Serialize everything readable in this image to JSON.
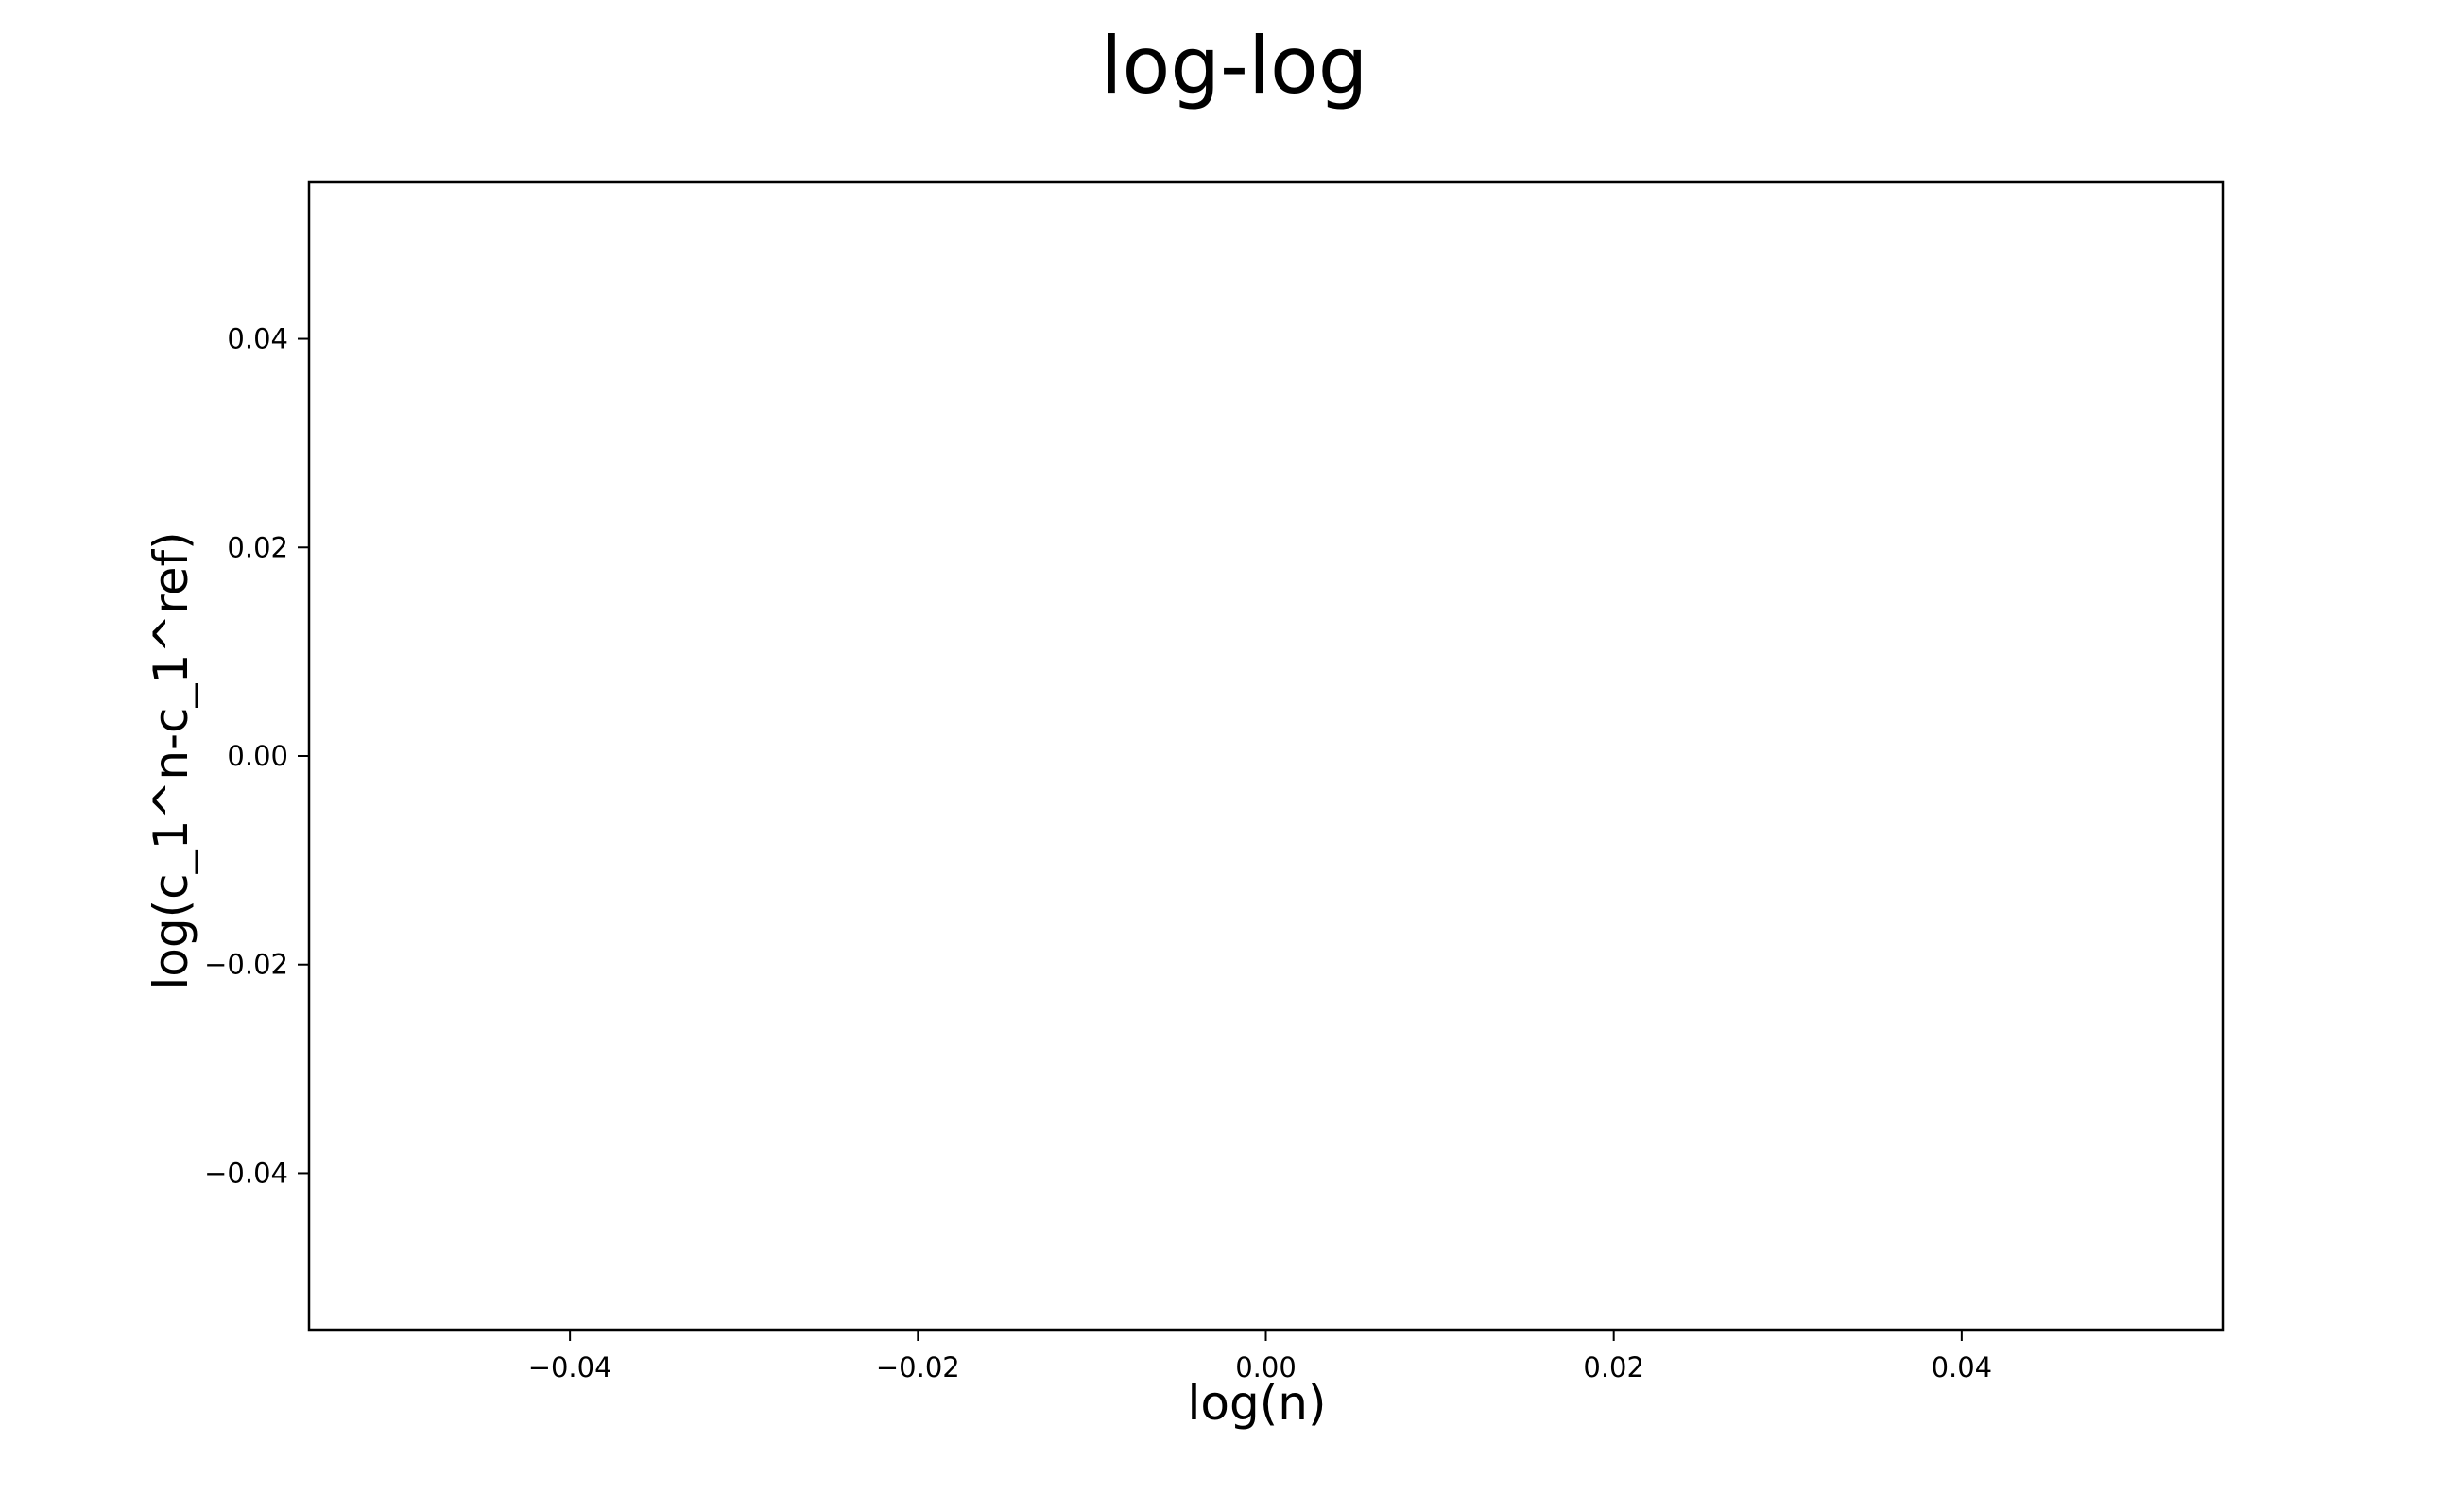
{
  "chart_data": {
    "type": "line",
    "title": "log-log",
    "xlabel": "log(n)",
    "ylabel": "log(c_1^n-c_1^ref)",
    "xlim": [
      -0.055,
      0.055
    ],
    "ylim": [
      -0.055,
      0.055
    ],
    "xticks": [
      -0.04,
      -0.02,
      0.0,
      0.02,
      0.04
    ],
    "yticks": [
      -0.04,
      -0.02,
      0.0,
      0.02,
      0.04
    ],
    "xtick_labels": [
      "−0.04",
      "−0.02",
      "0.00",
      "0.02",
      "0.04"
    ],
    "ytick_labels": [
      "−0.04",
      "−0.02",
      "0.00",
      "0.02",
      "0.04"
    ],
    "grid": false,
    "series": []
  }
}
